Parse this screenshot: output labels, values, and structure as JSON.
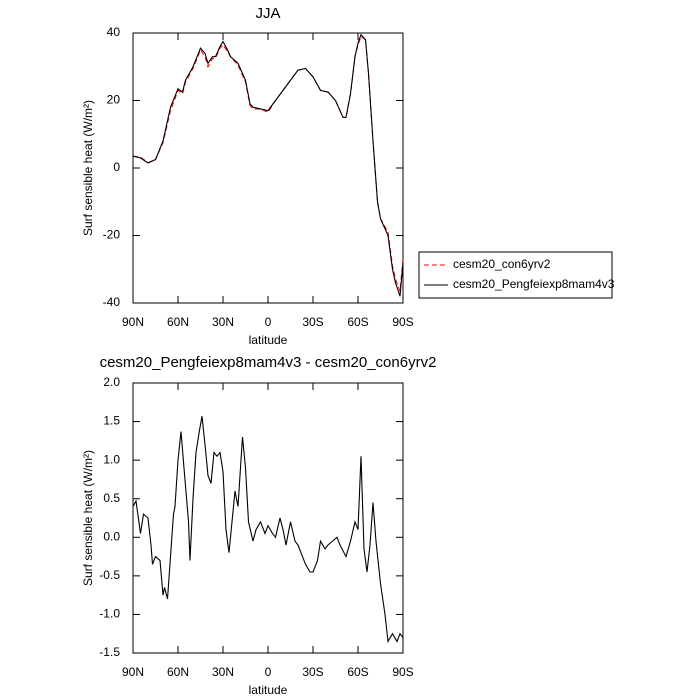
{
  "chart_data": [
    {
      "type": "line",
      "title": "JJA",
      "xlabel": "latitude",
      "ylabel": "Surf sensible heat (W/m²)",
      "x": [
        90,
        85,
        80,
        75,
        70,
        65,
        60,
        57,
        55,
        50,
        45,
        42,
        40,
        37,
        35,
        32,
        30,
        27,
        25,
        20,
        15,
        12,
        10,
        5,
        0,
        -5,
        -10,
        -15,
        -20,
        -25,
        -30,
        -35,
        -40,
        -45,
        -50,
        -52,
        -55,
        -58,
        -60,
        -62,
        -65,
        -67,
        -70,
        -73,
        -75,
        -80,
        -83,
        -85,
        -88,
        -90
      ],
      "series": [
        {
          "name": "cesm20_con6yrv2",
          "color": "#ff0000",
          "dashed": true,
          "values": [
            3.5,
            3.2,
            1.6,
            2.5,
            7.5,
            17,
            23,
            22,
            25.5,
            29.5,
            35,
            33,
            30,
            32.5,
            32.5,
            35.5,
            36.5,
            34.5,
            33,
            30.5,
            25.5,
            18.5,
            17.5,
            17.5,
            16.5,
            20,
            23,
            26,
            29,
            29.5,
            27,
            23,
            22.5,
            20,
            15,
            15,
            22,
            33,
            36.5,
            39,
            38,
            28,
            8,
            -10,
            -15,
            -19,
            -29,
            -33,
            -36.5,
            -27
          ]
        },
        {
          "name": "cesm20_Pengfeiexp8mam4v3",
          "color": "#000000",
          "dashed": false,
          "values": [
            3.5,
            3,
            1.5,
            2.5,
            8,
            18,
            23.5,
            22.5,
            26,
            30,
            35.5,
            34,
            31,
            33,
            33,
            36,
            37.5,
            35,
            33,
            31,
            26,
            19,
            18,
            17.5,
            17,
            20,
            23,
            26,
            29,
            29.5,
            27,
            23,
            22.5,
            20,
            15,
            15,
            22,
            33,
            37,
            39.5,
            38,
            28,
            8,
            -10,
            -15,
            -20,
            -30,
            -34,
            -38,
            -28
          ]
        }
      ],
      "xlim": [
        90,
        -90
      ],
      "xticks": [
        {
          "value": 90,
          "label": "90N"
        },
        {
          "value": 60,
          "label": "60N"
        },
        {
          "value": 30,
          "label": "30N"
        },
        0,
        {
          "value": -30,
          "label": "30S"
        },
        {
          "value": -60,
          "label": "60S"
        },
        {
          "value": -90,
          "label": "90S"
        }
      ],
      "ylim": [
        -40,
        40
      ],
      "yticks": [
        -40,
        -20,
        0,
        20,
        40
      ],
      "legend": "right"
    },
    {
      "type": "line",
      "title": "cesm20_Pengfeiexp8mam4v3 - cesm20_con6yrv2",
      "xlabel": "latitude",
      "ylabel": "Surf sensible heat (W/m²)",
      "x": [
        90,
        88,
        85,
        83,
        80,
        78,
        77,
        75,
        72,
        70,
        69,
        67,
        65,
        63,
        62,
        60,
        58,
        56,
        53,
        52,
        50,
        48,
        46,
        44,
        42,
        40,
        38,
        36,
        34,
        32,
        30,
        28,
        26,
        24,
        22,
        20,
        17,
        15,
        13,
        10,
        8,
        5,
        2,
        0,
        -3,
        -5,
        -8,
        -10,
        -12,
        -15,
        -18,
        -20,
        -25,
        -28,
        -30,
        -33,
        -35,
        -38,
        -40,
        -43,
        -46,
        -48,
        -52,
        -55,
        -58,
        -60,
        -62,
        -64,
        -66,
        -68,
        -70,
        -72,
        -75,
        -78,
        -80,
        -83,
        -86,
        -88,
        -90
      ],
      "series": [
        {
          "color": "#000000",
          "dashed": false,
          "values": [
            0.4,
            0.47,
            0.05,
            0.3,
            0.25,
            -0.1,
            -0.35,
            -0.25,
            -0.3,
            -0.75,
            -0.65,
            -0.8,
            -0.25,
            0.3,
            0.4,
            1,
            1.37,
            0.9,
            0.2,
            -0.3,
            0.5,
            1.1,
            1.35,
            1.57,
            1.2,
            0.8,
            0.7,
            1.1,
            1.05,
            1.1,
            0.85,
            0.1,
            -0.2,
            0.2,
            0.6,
            0.4,
            1.3,
            0.9,
            0.2,
            -0.05,
            0.1,
            0.2,
            0.05,
            0.15,
            0.05,
            0,
            0.25,
            0.1,
            -0.1,
            0.2,
            -0.05,
            -0.1,
            -0.35,
            -0.45,
            -0.45,
            -0.3,
            -0.05,
            -0.15,
            -0.1,
            -0.05,
            0,
            -0.1,
            -0.25,
            -0.05,
            0.2,
            0.1,
            1.05,
            -0.15,
            -0.45,
            -0.1,
            0.45,
            -0.05,
            -0.6,
            -1,
            -1.35,
            -1.25,
            -1.35,
            -1.25,
            -1.3
          ]
        }
      ],
      "xlim": [
        90,
        -90
      ],
      "xticks": [
        {
          "value": 90,
          "label": "90N"
        },
        {
          "value": 60,
          "label": "60N"
        },
        {
          "value": 30,
          "label": "30N"
        },
        0,
        {
          "value": -30,
          "label": "30S"
        },
        {
          "value": -60,
          "label": "60S"
        },
        {
          "value": -90,
          "label": "90S"
        }
      ],
      "ylim": [
        -1.5,
        2
      ],
      "yticks": [
        {
          "value": -1.5,
          "label": "-1.5"
        },
        {
          "value": -1,
          "label": "-1.0"
        },
        -0.5,
        {
          "value": 0,
          "label": "0.0"
        },
        0.5,
        {
          "value": 1,
          "label": "1.0"
        },
        1.5,
        {
          "value": 2,
          "label": "2.0"
        }
      ]
    }
  ]
}
